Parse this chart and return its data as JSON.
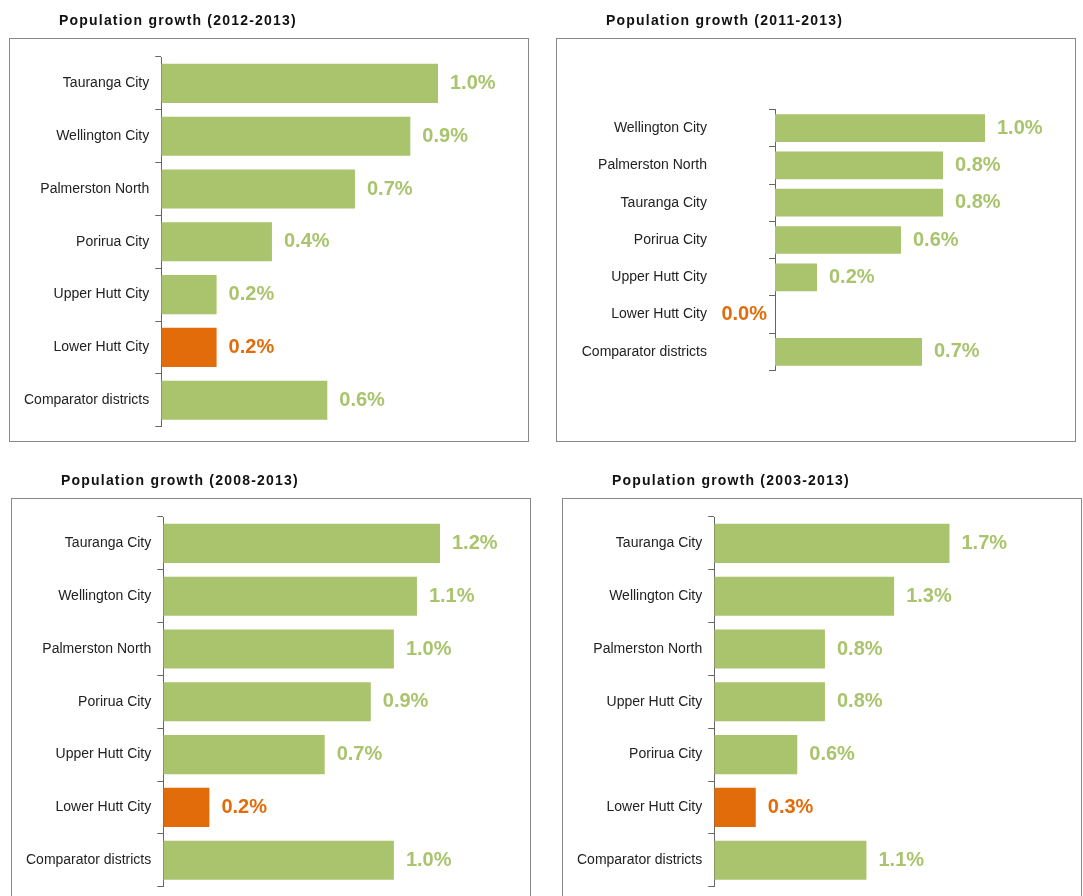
{
  "chart_data": [
    {
      "type": "bar",
      "orientation": "horizontal",
      "title": "Population growth (2012-2013)",
      "categories": [
        "Tauranga City",
        "Wellington City",
        "Palmerston North",
        "Porirua City",
        "Upper Hutt City",
        "Lower Hutt City",
        "Comparator districts"
      ],
      "values": [
        1.0,
        0.9,
        0.7,
        0.4,
        0.2,
        0.2,
        0.6
      ],
      "colors": [
        "#a9c46c",
        "#a9c46c",
        "#a9c46c",
        "#a9c46c",
        "#a9c46c",
        "#e36c0a",
        "#a9c46c"
      ],
      "value_labels": [
        "1.0%",
        "0.9%",
        "0.7%",
        "0.4%",
        "0.2%",
        "0.2%",
        "0.6%"
      ]
    },
    {
      "type": "bar",
      "orientation": "horizontal",
      "title": "Population growth (2011-2013)",
      "categories": [
        "Wellington City",
        "Palmerston North",
        "Tauranga City",
        "Porirua City",
        "Upper Hutt City",
        "Lower Hutt City",
        "Comparator districts"
      ],
      "values": [
        1.0,
        0.8,
        0.8,
        0.6,
        0.2,
        0.0,
        0.7
      ],
      "colors": [
        "#a9c46c",
        "#a9c46c",
        "#a9c46c",
        "#a9c46c",
        "#a9c46c",
        "#e36c0a",
        "#a9c46c"
      ],
      "value_labels": [
        "1.0%",
        "0.8%",
        "0.8%",
        "0.6%",
        "0.2%",
        "0.0%",
        "0.7%"
      ]
    },
    {
      "type": "bar",
      "orientation": "horizontal",
      "title": "Population growth (2008-2013)",
      "categories": [
        "Tauranga City",
        "Wellington City",
        "Palmerston North",
        "Porirua City",
        "Upper Hutt City",
        "Lower Hutt City",
        "Comparator districts"
      ],
      "values": [
        1.2,
        1.1,
        1.0,
        0.9,
        0.7,
        0.2,
        1.0
      ],
      "colors": [
        "#a9c46c",
        "#a9c46c",
        "#a9c46c",
        "#a9c46c",
        "#a9c46c",
        "#e36c0a",
        "#a9c46c"
      ],
      "value_labels": [
        "1.2%",
        "1.1%",
        "1.0%",
        "0.9%",
        "0.7%",
        "0.2%",
        "1.0%"
      ]
    },
    {
      "type": "bar",
      "orientation": "horizontal",
      "title": "Population growth (2003-2013)",
      "categories": [
        "Tauranga City",
        "Wellington City",
        "Palmerston North",
        "Upper Hutt City",
        "Porirua City",
        "Lower Hutt City",
        "Comparator districts"
      ],
      "values": [
        1.7,
        1.3,
        0.8,
        0.8,
        0.6,
        0.3,
        1.1
      ],
      "colors": [
        "#a9c46c",
        "#a9c46c",
        "#a9c46c",
        "#a9c46c",
        "#a9c46c",
        "#e36c0a",
        "#a9c46c"
      ],
      "value_labels": [
        "1.7%",
        "1.3%",
        "0.8%",
        "0.8%",
        "0.6%",
        "0.3%",
        "1.1%"
      ]
    }
  ]
}
